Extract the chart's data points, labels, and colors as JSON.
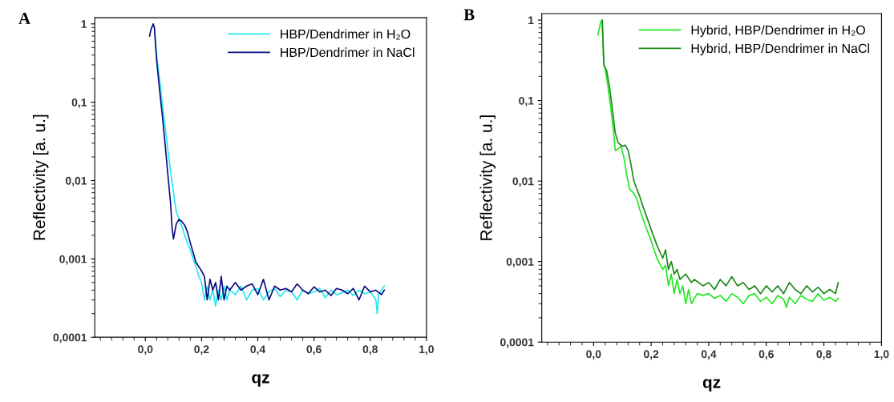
{
  "chart_data": [
    {
      "type": "line",
      "title": "A",
      "xlabel": "qz",
      "ylabel": "Reflectivity [a. u.]",
      "log": "y",
      "legend": "top right",
      "grid": false,
      "xlim": [
        -0.18,
        1.0
      ],
      "xticks": [
        {
          "value": 0.0,
          "label": "0,0"
        },
        {
          "value": 0.2,
          "label": "0,2"
        },
        {
          "value": 0.4,
          "label": "0,4"
        },
        {
          "value": 0.6,
          "label": "0,6"
        },
        {
          "value": 0.8,
          "label": "0,8"
        },
        {
          "value": 1.0,
          "label": "1,0"
        }
      ],
      "ylim": [
        0.0001,
        1.2
      ],
      "yticks": [
        {
          "value": 0.0001,
          "label": "0,0001"
        },
        {
          "value": 0.001,
          "label": "0,001"
        },
        {
          "value": 0.01,
          "label": "0,01"
        },
        {
          "value": 0.1,
          "label": "0,1"
        },
        {
          "value": 1,
          "label": "1"
        }
      ],
      "series": [
        {
          "name": "HBP/Dendrimer in H₂O",
          "color": "#22e8f0",
          "x": [
            0.032,
            0.04,
            0.05,
            0.06,
            0.07,
            0.08,
            0.09,
            0.1,
            0.11,
            0.12,
            0.13,
            0.14,
            0.15,
            0.16,
            0.17,
            0.18,
            0.19,
            0.2,
            0.21,
            0.22,
            0.23,
            0.24,
            0.25,
            0.26,
            0.27,
            0.28,
            0.29,
            0.3,
            0.32,
            0.34,
            0.36,
            0.38,
            0.4,
            0.42,
            0.44,
            0.46,
            0.48,
            0.5,
            0.52,
            0.54,
            0.56,
            0.58,
            0.6,
            0.62,
            0.64,
            0.66,
            0.68,
            0.7,
            0.72,
            0.74,
            0.76,
            0.78,
            0.8,
            0.82,
            0.825,
            0.83,
            0.84,
            0.85
          ],
          "values": [
            0.9,
            0.4,
            0.2,
            0.1,
            0.05,
            0.025,
            0.013,
            0.007,
            0.004,
            0.0032,
            0.0026,
            0.002,
            0.0016,
            0.0013,
            0.001,
            0.0008,
            0.0006,
            0.0005,
            0.0003,
            0.00045,
            0.0003,
            0.0004,
            0.00025,
            0.0004,
            0.0003,
            0.00045,
            0.0003,
            0.0004,
            0.00035,
            0.00045,
            0.0003,
            0.0004,
            0.00042,
            0.0003,
            0.00038,
            0.00042,
            0.00033,
            0.0004,
            0.00038,
            0.0003,
            0.0004,
            0.00036,
            0.00038,
            0.00042,
            0.00032,
            0.0004,
            0.00035,
            0.00037,
            0.0004,
            0.00034,
            0.0004,
            0.00036,
            0.00038,
            0.0003,
            0.0002,
            0.00036,
            0.0004,
            0.00045
          ]
        },
        {
          "name": "HBP/Dendrimer in NaCl",
          "color": "#0a0a80",
          "x": [
            0.015,
            0.02,
            0.028,
            0.032,
            0.04,
            0.05,
            0.06,
            0.07,
            0.08,
            0.09,
            0.095,
            0.1,
            0.11,
            0.12,
            0.13,
            0.14,
            0.15,
            0.16,
            0.17,
            0.18,
            0.19,
            0.2,
            0.21,
            0.22,
            0.23,
            0.24,
            0.25,
            0.26,
            0.27,
            0.28,
            0.29,
            0.3,
            0.32,
            0.34,
            0.36,
            0.38,
            0.4,
            0.42,
            0.44,
            0.46,
            0.48,
            0.5,
            0.52,
            0.54,
            0.56,
            0.58,
            0.6,
            0.62,
            0.64,
            0.66,
            0.68,
            0.7,
            0.72,
            0.74,
            0.76,
            0.78,
            0.8,
            0.82,
            0.84,
            0.85
          ],
          "values": [
            0.7,
            0.85,
            1.0,
            0.9,
            0.35,
            0.15,
            0.07,
            0.03,
            0.012,
            0.005,
            0.0025,
            0.0018,
            0.0028,
            0.0032,
            0.003,
            0.0027,
            0.0022,
            0.0016,
            0.0012,
            0.0009,
            0.0008,
            0.0007,
            0.0006,
            0.0003,
            0.00055,
            0.0004,
            0.0005,
            0.0003,
            0.0006,
            0.0003,
            0.00045,
            0.0004,
            0.0005,
            0.0004,
            0.00045,
            0.00048,
            0.00035,
            0.00055,
            0.0003,
            0.00045,
            0.0004,
            0.00042,
            0.00038,
            0.00048,
            0.0004,
            0.00036,
            0.00044,
            0.00038,
            0.0004,
            0.00034,
            0.00042,
            0.0004,
            0.00036,
            0.00042,
            0.0003,
            0.00045,
            0.00038,
            0.0004,
            0.00035,
            0.0004
          ]
        }
      ]
    },
    {
      "type": "line",
      "title": "B",
      "xlabel": "qz",
      "ylabel": "Reflectivity [a. u.]",
      "log": "y",
      "legend": "top right",
      "grid": false,
      "xlim": [
        -0.18,
        1.0
      ],
      "xticks": [
        {
          "value": 0.0,
          "label": "0,0"
        },
        {
          "value": 0.2,
          "label": "0,2"
        },
        {
          "value": 0.4,
          "label": "0,4"
        },
        {
          "value": 0.6,
          "label": "0,6"
        },
        {
          "value": 0.8,
          "label": "0,8"
        },
        {
          "value": 1.0,
          "label": "1,0"
        }
      ],
      "ylim": [
        0.0001,
        1.2
      ],
      "yticks": [
        {
          "value": 0.0001,
          "label": "0,0001"
        },
        {
          "value": 0.001,
          "label": "0,001"
        },
        {
          "value": 0.01,
          "label": "0,01"
        },
        {
          "value": 0.1,
          "label": "0,1"
        },
        {
          "value": 1,
          "label": "1"
        }
      ],
      "series": [
        {
          "name": "Hybrid, HBP/Dendrimer in H₂O",
          "color": "#22e822",
          "x": [
            0.015,
            0.025,
            0.03,
            0.035,
            0.04,
            0.05,
            0.06,
            0.07,
            0.075,
            0.085,
            0.095,
            0.105,
            0.115,
            0.125,
            0.14,
            0.15,
            0.16,
            0.17,
            0.18,
            0.2,
            0.22,
            0.24,
            0.25,
            0.26,
            0.27,
            0.28,
            0.29,
            0.3,
            0.31,
            0.32,
            0.33,
            0.34,
            0.36,
            0.38,
            0.4,
            0.42,
            0.44,
            0.46,
            0.48,
            0.5,
            0.52,
            0.54,
            0.56,
            0.58,
            0.6,
            0.62,
            0.64,
            0.66,
            0.67,
            0.68,
            0.7,
            0.72,
            0.74,
            0.76,
            0.78,
            0.8,
            0.82,
            0.84,
            0.85
          ],
          "values": [
            0.65,
            0.95,
            1.0,
            0.3,
            0.25,
            0.15,
            0.08,
            0.04,
            0.024,
            0.025,
            0.027,
            0.02,
            0.012,
            0.008,
            0.007,
            0.006,
            0.0045,
            0.0035,
            0.0028,
            0.0018,
            0.0011,
            0.0008,
            0.0009,
            0.0005,
            0.0007,
            0.0004,
            0.0006,
            0.0004,
            0.0005,
            0.0003,
            0.00045,
            0.0003,
            0.0004,
            0.00038,
            0.0004,
            0.00035,
            0.00038,
            0.00032,
            0.0004,
            0.00036,
            0.0003,
            0.00038,
            0.0004,
            0.00032,
            0.00036,
            0.0003,
            0.00038,
            0.00034,
            0.00027,
            0.00036,
            0.0003,
            0.00038,
            0.00034,
            0.00032,
            0.0004,
            0.00033,
            0.00036,
            0.00032,
            0.00035
          ]
        },
        {
          "name": "Hybrid, HBP/Dendrimer in NaCl",
          "color": "#1a8a1a",
          "x": [
            0.03,
            0.036,
            0.045,
            0.055,
            0.065,
            0.075,
            0.085,
            0.1,
            0.11,
            0.12,
            0.13,
            0.14,
            0.15,
            0.16,
            0.17,
            0.18,
            0.2,
            0.22,
            0.24,
            0.25,
            0.26,
            0.27,
            0.28,
            0.29,
            0.3,
            0.32,
            0.34,
            0.35,
            0.38,
            0.4,
            0.42,
            0.44,
            0.46,
            0.48,
            0.5,
            0.52,
            0.54,
            0.56,
            0.58,
            0.6,
            0.62,
            0.64,
            0.66,
            0.68,
            0.7,
            0.72,
            0.74,
            0.76,
            0.78,
            0.8,
            0.82,
            0.84,
            0.85
          ],
          "values": [
            1.0,
            0.27,
            0.24,
            0.15,
            0.08,
            0.04,
            0.03,
            0.027,
            0.028,
            0.024,
            0.016,
            0.01,
            0.008,
            0.0065,
            0.005,
            0.004,
            0.0025,
            0.0016,
            0.0011,
            0.0014,
            0.0008,
            0.001,
            0.0007,
            0.0008,
            0.0006,
            0.0007,
            0.00055,
            0.0006,
            0.0005,
            0.00055,
            0.00045,
            0.0006,
            0.0005,
            0.00065,
            0.0005,
            0.00055,
            0.00045,
            0.0005,
            0.0004,
            0.0005,
            0.00042,
            0.0005,
            0.0004,
            0.00055,
            0.00045,
            0.0004,
            0.0005,
            0.00042,
            0.00048,
            0.0004,
            0.00045,
            0.0004,
            0.00055
          ]
        }
      ]
    }
  ]
}
